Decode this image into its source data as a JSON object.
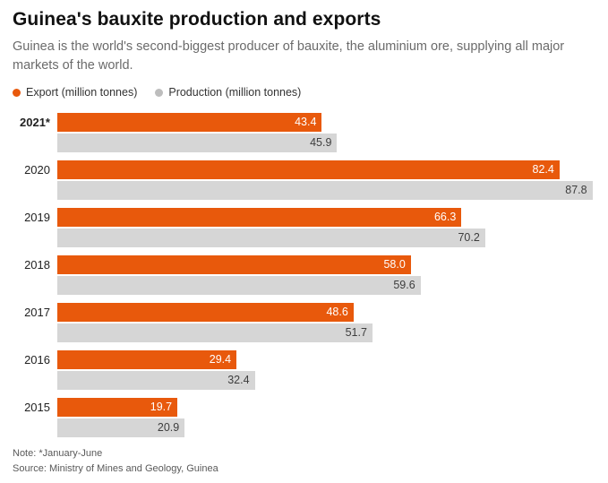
{
  "header": {
    "title": "Guinea's bauxite production and exports",
    "subtitle": "Guinea is the world's second-biggest producer of bauxite, the aluminium ore, supplying all major markets of the world."
  },
  "legend": [
    {
      "label": "Export (million tonnes)",
      "color": "#e8590c"
    },
    {
      "label": "Production (million tonnes)",
      "color": "#bdbdbd"
    }
  ],
  "chart_data": {
    "type": "bar",
    "orientation": "horizontal",
    "title": "Guinea's bauxite production and exports",
    "categories": [
      "2021*",
      "2020",
      "2019",
      "2018",
      "2017",
      "2016",
      "2015"
    ],
    "emphasized_category": "2021*",
    "series": [
      {
        "name": "Export (million tonnes)",
        "color": "#e8590c",
        "label_color": "#ffffff",
        "values": [
          43.4,
          82.4,
          66.3,
          58.0,
          48.6,
          29.4,
          19.7
        ]
      },
      {
        "name": "Production (million tonnes)",
        "color": "#d6d6d6",
        "label_color": "#3d3d3d",
        "values": [
          45.9,
          87.8,
          70.2,
          59.6,
          51.7,
          32.4,
          20.9
        ]
      }
    ],
    "xlim": [
      0,
      88
    ],
    "value_decimals": 1,
    "grid": false,
    "legend_position": "top"
  },
  "footer": {
    "note": "Note: *January-June",
    "source": "Source: Ministry of Mines and Geology, Guinea"
  }
}
